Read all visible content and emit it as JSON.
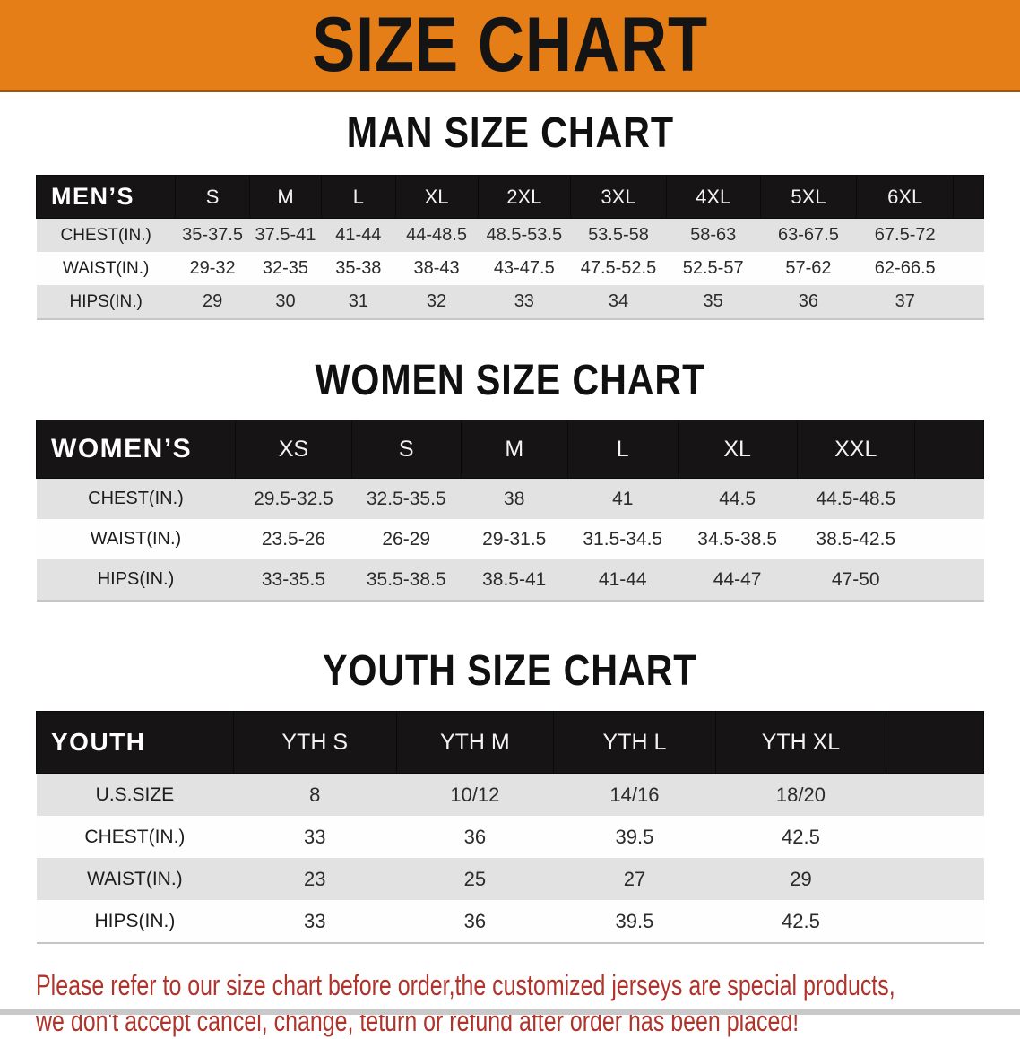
{
  "banner": {
    "title": "SIZE CHART"
  },
  "sections": [
    {
      "heading": "MAN SIZE CHART",
      "group_label": "MEN’S",
      "columns": [
        "S",
        "M",
        "L",
        "XL",
        "2XL",
        "3XL",
        "4XL",
        "5XL",
        "6XL"
      ],
      "rows": [
        {
          "label": "CHEST(IN.)",
          "values": [
            "35-37.5",
            "37.5-41",
            "41-44",
            "44-48.5",
            "48.5-53.5",
            "53.5-58",
            "58-63",
            "63-67.5",
            "67.5-72"
          ]
        },
        {
          "label": "WAIST(IN.)",
          "values": [
            "29-32",
            "32-35",
            "35-38",
            "38-43",
            "43-47.5",
            "47.5-52.5",
            "52.5-57",
            "57-62",
            "62-66.5"
          ]
        },
        {
          "label": "HIPS(IN.)",
          "values": [
            "29",
            "30",
            "31",
            "32",
            "33",
            "34",
            "35",
            "36",
            "37"
          ]
        }
      ]
    },
    {
      "heading": "WOMEN SIZE CHART",
      "group_label": "WOMEN’S",
      "columns": [
        "XS",
        "S",
        "M",
        "L",
        "XL",
        "XXL"
      ],
      "rows": [
        {
          "label": "CHEST(IN.)",
          "values": [
            "29.5-32.5",
            "32.5-35.5",
            "38",
            "41",
            "44.5",
            "44.5-48.5"
          ]
        },
        {
          "label": "WAIST(IN.)",
          "values": [
            "23.5-26",
            "26-29",
            "29-31.5",
            "31.5-34.5",
            "34.5-38.5",
            "38.5-42.5"
          ]
        },
        {
          "label": "HIPS(IN.)",
          "values": [
            "33-35.5",
            "35.5-38.5",
            "38.5-41",
            "41-44",
            "44-47",
            "47-50"
          ]
        }
      ]
    },
    {
      "heading": "YOUTH SIZE CHART",
      "group_label": "YOUTH",
      "columns": [
        "YTH S",
        "YTH M",
        "YTH L",
        "YTH XL"
      ],
      "rows": [
        {
          "label": "U.S.SIZE",
          "values": [
            "8",
            "10/12",
            "14/16",
            "18/20"
          ]
        },
        {
          "label": "CHEST(IN.)",
          "values": [
            "33",
            "36",
            "39.5",
            "42.5"
          ]
        },
        {
          "label": "WAIST(IN.)",
          "values": [
            "23",
            "25",
            "27",
            "29"
          ]
        },
        {
          "label": "HIPS(IN.)",
          "values": [
            "33",
            "36",
            "39.5",
            "42.5"
          ]
        }
      ]
    }
  ],
  "disclaimer": {
    "line1": "Please refer to our size chart before order,the customized jerseys are special products,",
    "line2": "we don't accept cancel, change, teturn or refund after order has been placed!"
  },
  "colors": {
    "banner_bg": "#E57E17",
    "header_bg": "#161414",
    "row_alt_bg": "#E2E2E2",
    "disclaimer_text": "#AE342C"
  }
}
